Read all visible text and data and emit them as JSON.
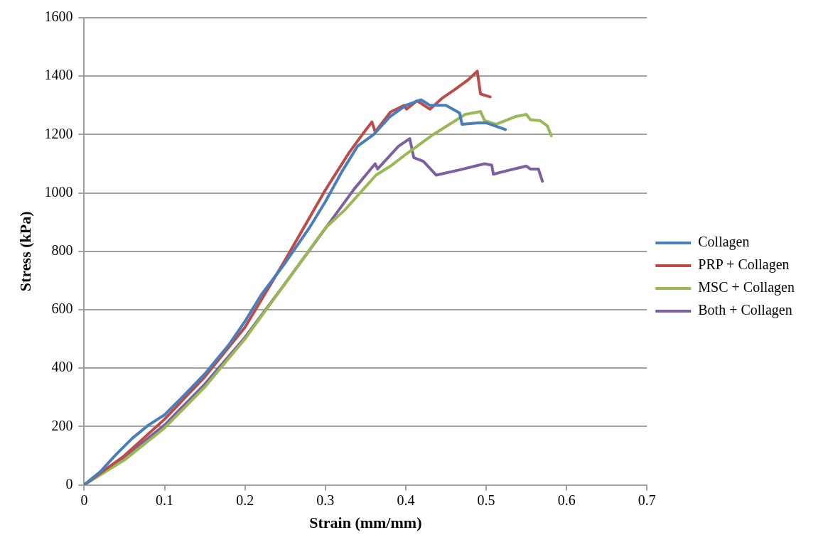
{
  "chart_data": {
    "type": "line",
    "xlabel": "Strain (mm/mm)",
    "ylabel": "Stress (kPa)",
    "xlim": [
      0,
      0.7
    ],
    "xticks": [
      0,
      0.1,
      0.2,
      0.3,
      0.4,
      0.5,
      0.6,
      0.7
    ],
    "ylim": [
      0,
      1600
    ],
    "yticks": [
      0,
      200,
      400,
      600,
      800,
      1000,
      1200,
      1400,
      1600
    ],
    "grid": "y",
    "legend": "right",
    "marker": "none",
    "line_style": "solid",
    "series": [
      {
        "name": "Collagen",
        "color": "#4a7ebb",
        "x": [
          0,
          0.02,
          0.04,
          0.06,
          0.08,
          0.1,
          0.12,
          0.15,
          0.18,
          0.2,
          0.22,
          0.25,
          0.28,
          0.3,
          0.32,
          0.34,
          0.36,
          0.38,
          0.4,
          0.419,
          0.43,
          0.45,
          0.467,
          0.47,
          0.49,
          0.5,
          0.524
        ],
        "values": [
          0,
          45,
          105,
          160,
          205,
          240,
          295,
          380,
          480,
          560,
          650,
          760,
          880,
          970,
          1070,
          1160,
          1200,
          1260,
          1300,
          1319,
          1300,
          1300,
          1274,
          1235,
          1240,
          1240,
          1217
        ]
      },
      {
        "name": "PRP + Collagen",
        "color": "#be4b48",
        "x": [
          0,
          0.05,
          0.1,
          0.15,
          0.2,
          0.25,
          0.3,
          0.33,
          0.35,
          0.358,
          0.362,
          0.381,
          0.398,
          0.401,
          0.414,
          0.43,
          0.446,
          0.46,
          0.477,
          0.489,
          0.493,
          0.505
        ],
        "values": [
          0,
          100,
          225,
          370,
          540,
          770,
          1010,
          1140,
          1215,
          1243,
          1209,
          1277,
          1300,
          1287,
          1316,
          1287,
          1326,
          1352,
          1386,
          1417,
          1339,
          1329
        ]
      },
      {
        "name": "MSC + Collagen",
        "color": "#98b954",
        "x": [
          0,
          0.05,
          0.1,
          0.15,
          0.2,
          0.25,
          0.3,
          0.325,
          0.363,
          0.381,
          0.401,
          0.432,
          0.474,
          0.493,
          0.498,
          0.512,
          0.536,
          0.55,
          0.555,
          0.567,
          0.576,
          0.581
        ],
        "values": [
          0,
          85,
          195,
          335,
          500,
          690,
          880,
          944,
          1061,
          1092,
          1134,
          1196,
          1269,
          1279,
          1248,
          1235,
          1261,
          1269,
          1251,
          1248,
          1230,
          1196
        ]
      },
      {
        "name": "Both + Collagen",
        "color": "#7d60a0",
        "x": [
          0,
          0.05,
          0.1,
          0.15,
          0.2,
          0.25,
          0.305,
          0.336,
          0.362,
          0.365,
          0.391,
          0.405,
          0.41,
          0.422,
          0.438,
          0.467,
          0.498,
          0.507,
          0.509,
          0.523,
          0.55,
          0.555,
          0.565,
          0.57
        ],
        "values": [
          0,
          95,
          205,
          345,
          505,
          690,
          897,
          1014,
          1100,
          1082,
          1160,
          1186,
          1121,
          1108,
          1061,
          1079,
          1100,
          1095,
          1064,
          1074,
          1092,
          1082,
          1082,
          1040
        ]
      }
    ]
  }
}
